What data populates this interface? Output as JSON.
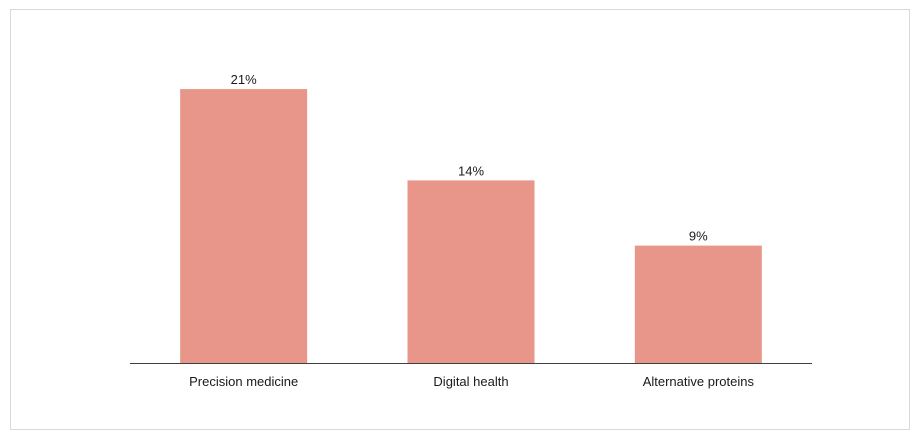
{
  "chart_data": {
    "type": "bar",
    "title": "",
    "xlabel": "",
    "ylabel": "",
    "categories": [
      "Precision medicine",
      "Digital health",
      "Alternative proteins"
    ],
    "values": [
      21,
      14,
      9
    ],
    "value_labels": [
      "21%",
      "14%",
      "9%"
    ],
    "unit": "%",
    "ylim": [
      0,
      23
    ],
    "grid": false,
    "legend": "none",
    "bar_color": "#e8968a",
    "axis_color": "#404040"
  }
}
